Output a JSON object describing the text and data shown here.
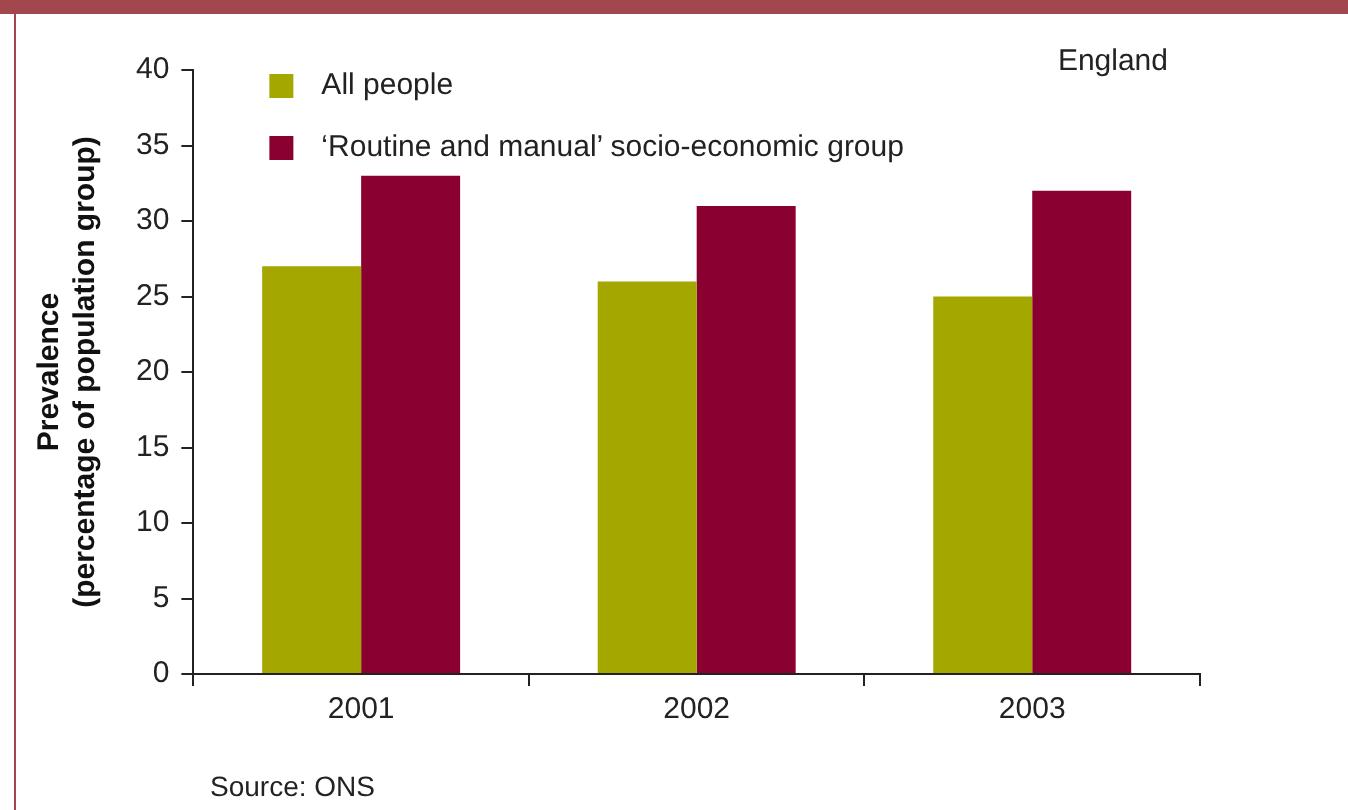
{
  "chart_data": {
    "type": "bar",
    "ylabel": "Prevalence\n(percentage of population group)",
    "categories": [
      "2001",
      "2002",
      "2003"
    ],
    "series": [
      {
        "name": "All people",
        "color": "#a3a700",
        "values": [
          27,
          26,
          25
        ]
      },
      {
        "name": "‘Routine and manual’ socio-economic group",
        "color": "#8a0031",
        "values": [
          33,
          31,
          32
        ]
      }
    ],
    "ylim": [
      0,
      40
    ],
    "yticks": [
      0,
      5,
      10,
      15,
      20,
      25,
      30,
      35,
      40
    ],
    "grid": false,
    "legend": "top left",
    "annotations": [
      "England",
      "Source: ONS"
    ]
  }
}
